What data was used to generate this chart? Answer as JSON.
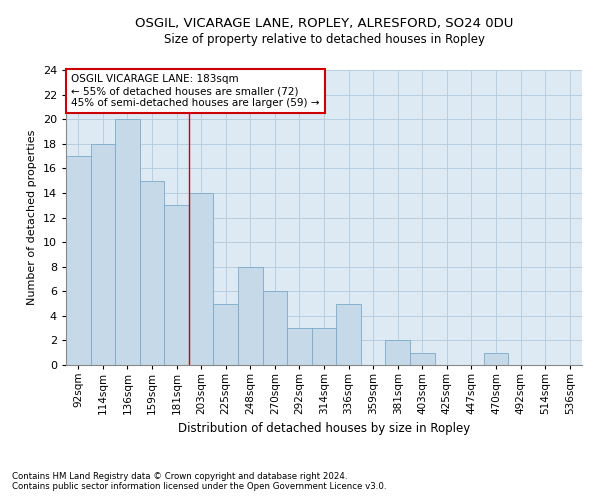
{
  "title1": "OSGIL, VICARAGE LANE, ROPLEY, ALRESFORD, SO24 0DU",
  "title2": "Size of property relative to detached houses in Ropley",
  "xlabel": "Distribution of detached houses by size in Ropley",
  "ylabel": "Number of detached properties",
  "categories": [
    "92sqm",
    "114sqm",
    "136sqm",
    "159sqm",
    "181sqm",
    "203sqm",
    "225sqm",
    "248sqm",
    "270sqm",
    "292sqm",
    "314sqm",
    "336sqm",
    "359sqm",
    "381sqm",
    "403sqm",
    "425sqm",
    "447sqm",
    "470sqm",
    "492sqm",
    "514sqm",
    "536sqm"
  ],
  "values": [
    17,
    18,
    20,
    15,
    13,
    14,
    5,
    8,
    6,
    3,
    3,
    5,
    0,
    2,
    1,
    0,
    0,
    1,
    0,
    0,
    0
  ],
  "bar_color": "#c5d9e8",
  "bar_edge_color": "#7baac8",
  "vline_color": "#cc0000",
  "annotation_box_text": "OSGIL VICARAGE LANE: 183sqm\n← 55% of detached houses are smaller (72)\n45% of semi-detached houses are larger (59) →",
  "annotation_box_color": "#cc0000",
  "ylim": [
    0,
    24
  ],
  "yticks": [
    0,
    2,
    4,
    6,
    8,
    10,
    12,
    14,
    16,
    18,
    20,
    22,
    24
  ],
  "footnote1": "Contains HM Land Registry data © Crown copyright and database right 2024.",
  "footnote2": "Contains public sector information licensed under the Open Government Licence v3.0.",
  "grid_color": "#b8cfe0",
  "bg_color": "#ddeaf4",
  "title1_fontsize": 9.5,
  "title2_fontsize": 8.5,
  "xlabel_fontsize": 8.5,
  "ylabel_fontsize": 8.0,
  "tick_fontsize": 7.5,
  "ytick_fontsize": 8.0,
  "annot_fontsize": 7.5,
  "footnote_fontsize": 6.2
}
